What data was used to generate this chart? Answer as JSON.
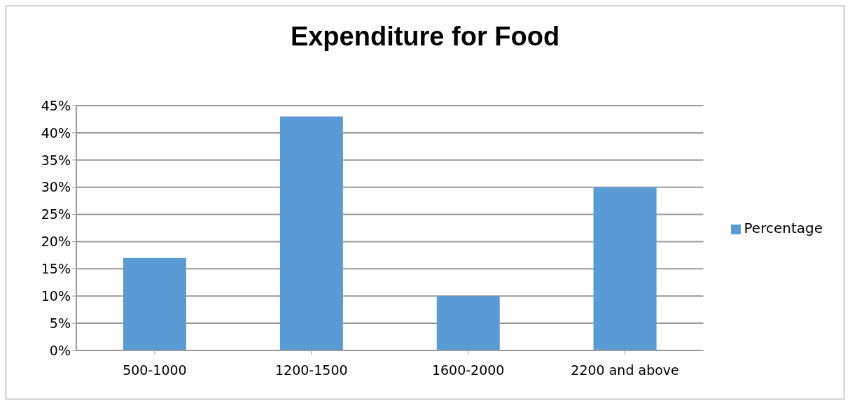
{
  "chart_data": {
    "type": "bar",
    "title": "Expenditure for Food",
    "categories": [
      "500-1000",
      "1200-1500",
      "1600-2000",
      "2200 and above"
    ],
    "series": [
      {
        "name": "Percentage",
        "color": "#5b9bd5",
        "values": [
          17,
          43,
          10,
          30
        ]
      }
    ],
    "ylim": [
      0,
      45
    ],
    "yticks": [
      {
        "value": 0,
        "label": "0%"
      },
      {
        "value": 5,
        "label": "5%"
      },
      {
        "value": 10,
        "label": "10%"
      },
      {
        "value": 15,
        "label": "15%"
      },
      {
        "value": 20,
        "label": "20%"
      },
      {
        "value": 25,
        "label": "25%"
      },
      {
        "value": 30,
        "label": "30%"
      },
      {
        "value": 35,
        "label": "35%"
      },
      {
        "value": 40,
        "label": "40%"
      },
      {
        "value": 45,
        "label": "45%"
      }
    ],
    "grid": "y",
    "legend": "right"
  }
}
